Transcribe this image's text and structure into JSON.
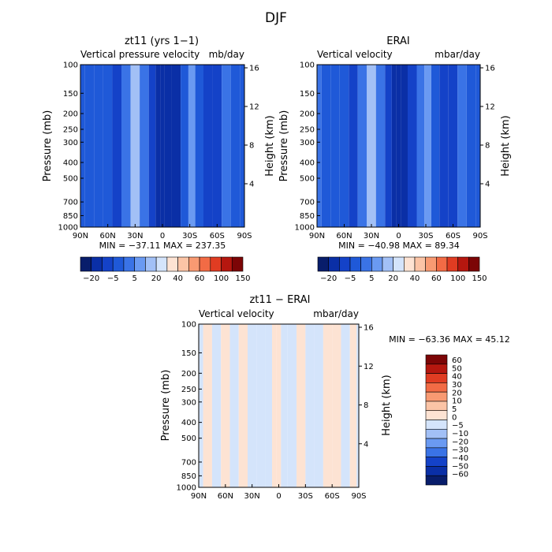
{
  "figure_title": "DJF",
  "colors": {
    "blue_scale": [
      "#081d6b",
      "#0a2fa6",
      "#1442c8",
      "#1f59d8",
      "#3a73e6",
      "#6a9af2",
      "#a2c0f6",
      "#d4e4fb"
    ],
    "red_scale": [
      "#fde3d3",
      "#fbc4a6",
      "#f89a72",
      "#f26b45",
      "#e03c22",
      "#b5170f",
      "#7c0506"
    ],
    "top_colorbar": [
      "#081d6b",
      "#0a2fa6",
      "#1442c8",
      "#1f59d8",
      "#3a73e6",
      "#6a9af2",
      "#a2c0f6",
      "#d4e4fb",
      "#fde3d3",
      "#fbc4a6",
      "#f89a72",
      "#f26b45",
      "#e03c22",
      "#b5170f",
      "#7c0506"
    ],
    "diff_colorbar": [
      "#081d6b",
      "#0a2fa6",
      "#1442c8",
      "#3a73e6",
      "#6a9af2",
      "#a2c0f6",
      "#d4e4fb",
      "#fde3d3",
      "#fbc4a6",
      "#f89a72",
      "#f26b45",
      "#e03c22",
      "#b5170f",
      "#7c0506"
    ]
  },
  "chart_data": [
    {
      "type": "heatmap",
      "title": "zt11 (yrs 1−1)",
      "subtitle_left": "Vertical pressure velocity",
      "subtitle_right": "mb/day",
      "xlabel": "",
      "ylabel": "Pressure (mb)",
      "ylabel_right": "Height (km)",
      "x_ticks": [
        "90N",
        "60N",
        "30N",
        "0",
        "30S",
        "60S",
        "90S"
      ],
      "y_ticks": [
        "100",
        "150",
        "200",
        "250",
        "300",
        "400",
        "500",
        "700",
        "850",
        "1000"
      ],
      "y_right_ticks": [
        "16",
        "12",
        "8",
        "4"
      ],
      "minmax_text": "MIN = −37.11   MAX = 237.35",
      "colorbar_labels": [
        "−20",
        "−5",
        "5",
        "20",
        "40",
        "60",
        "100",
        "150"
      ],
      "ylim": [
        1000,
        100
      ],
      "xlim": [
        90,
        -90
      ],
      "scale": "log-pressure",
      "columns": [
        {
          "lat": 90,
          "v": 0.48
        },
        {
          "lat": 80,
          "v": 0.46
        },
        {
          "lat": 70,
          "v": 0.38
        },
        {
          "lat": 60,
          "v": 0.42
        },
        {
          "lat": 50,
          "v": 0.35
        },
        {
          "lat": 40,
          "v": 0.55
        },
        {
          "lat": 30,
          "v": 0.88
        },
        {
          "lat": 20,
          "v": 0.62
        },
        {
          "lat": 10,
          "v": 0.28
        },
        {
          "lat": 5,
          "v": 0.15
        },
        {
          "lat": 0,
          "v": 0.12
        },
        {
          "lat": -5,
          "v": 0.1
        },
        {
          "lat": -15,
          "v": 0.2
        },
        {
          "lat": -25,
          "v": 0.48
        },
        {
          "lat": -32,
          "v": 0.72
        },
        {
          "lat": -40,
          "v": 0.45
        },
        {
          "lat": -50,
          "v": 0.3
        },
        {
          "lat": -60,
          "v": 0.35
        },
        {
          "lat": -70,
          "v": 0.58
        },
        {
          "lat": -80,
          "v": 0.44
        },
        {
          "lat": -90,
          "v": 0.38
        }
      ]
    },
    {
      "type": "heatmap",
      "title": "ERAI",
      "subtitle_left": "Vertical velocity",
      "subtitle_right": "mbar/day",
      "xlabel": "",
      "ylabel": "Pressure (mb)",
      "ylabel_right": "Height (km)",
      "x_ticks": [
        "90N",
        "60N",
        "30N",
        "0",
        "30S",
        "60S",
        "90S"
      ],
      "y_ticks": [
        "100",
        "150",
        "200",
        "250",
        "300",
        "400",
        "500",
        "700",
        "850",
        "1000"
      ],
      "y_right_ticks": [
        "16",
        "12",
        "8",
        "4"
      ],
      "minmax_text": "MIN = −40.98   MAX =   89.34",
      "colorbar_labels": [
        "−20",
        "−5",
        "5",
        "20",
        "40",
        "60",
        "100",
        "150"
      ],
      "ylim": [
        1000,
        100
      ],
      "xlim": [
        90,
        -90
      ],
      "scale": "log-pressure",
      "columns": [
        {
          "lat": 90,
          "v": 0.5
        },
        {
          "lat": 80,
          "v": 0.44
        },
        {
          "lat": 70,
          "v": 0.36
        },
        {
          "lat": 60,
          "v": 0.4
        },
        {
          "lat": 50,
          "v": 0.32
        },
        {
          "lat": 40,
          "v": 0.55
        },
        {
          "lat": 30,
          "v": 0.86
        },
        {
          "lat": 20,
          "v": 0.6
        },
        {
          "lat": 10,
          "v": 0.25
        },
        {
          "lat": 5,
          "v": 0.13
        },
        {
          "lat": 0,
          "v": 0.08
        },
        {
          "lat": -5,
          "v": 0.12
        },
        {
          "lat": -15,
          "v": 0.22
        },
        {
          "lat": -25,
          "v": 0.5
        },
        {
          "lat": -32,
          "v": 0.7
        },
        {
          "lat": -40,
          "v": 0.42
        },
        {
          "lat": -50,
          "v": 0.28
        },
        {
          "lat": -60,
          "v": 0.33
        },
        {
          "lat": -70,
          "v": 0.55
        },
        {
          "lat": -80,
          "v": 0.4
        },
        {
          "lat": -90,
          "v": 0.36
        }
      ]
    },
    {
      "type": "heatmap",
      "title": "zt11 − ERAI",
      "subtitle_left": "Vertical velocity",
      "subtitle_right": "mbar/day",
      "xlabel": "",
      "ylabel": "Pressure (mb)",
      "ylabel_right": "Height (km)",
      "x_ticks": [
        "90N",
        "60N",
        "30N",
        "0",
        "30S",
        "60S",
        "90S"
      ],
      "y_ticks": [
        "100",
        "150",
        "200",
        "250",
        "300",
        "400",
        "500",
        "700",
        "850",
        "1000"
      ],
      "y_right_ticks": [
        "16",
        "12",
        "8",
        "4"
      ],
      "minmax_text": "MIN = −63.36   MAX =   45.12",
      "colorbar_labels": [
        "60",
        "50",
        "40",
        "30",
        "20",
        "10",
        "5",
        "0",
        "−5",
        "−10",
        "−20",
        "−30",
        "−40",
        "−50",
        "−60"
      ],
      "ylim": [
        1000,
        100
      ],
      "xlim": [
        90,
        -90
      ],
      "scale": "log-pressure",
      "columns": [
        {
          "lat": 90,
          "sign": "neg"
        },
        {
          "lat": 80,
          "sign": "pos"
        },
        {
          "lat": 70,
          "sign": "neg"
        },
        {
          "lat": 60,
          "sign": "pos"
        },
        {
          "lat": 50,
          "sign": "neg"
        },
        {
          "lat": 40,
          "sign": "pos"
        },
        {
          "lat": 30,
          "sign": "neg"
        },
        {
          "lat": 20,
          "sign": "neg"
        },
        {
          "lat": 10,
          "sign": "neg"
        },
        {
          "lat": 5,
          "sign": "pos"
        },
        {
          "lat": 0,
          "sign": "pos"
        },
        {
          "lat": -5,
          "sign": "neg"
        },
        {
          "lat": -15,
          "sign": "neg"
        },
        {
          "lat": -25,
          "sign": "pos"
        },
        {
          "lat": -35,
          "sign": "neg"
        },
        {
          "lat": -45,
          "sign": "neg"
        },
        {
          "lat": -55,
          "sign": "pos"
        },
        {
          "lat": -65,
          "sign": "pos"
        },
        {
          "lat": -75,
          "sign": "neg"
        },
        {
          "lat": -85,
          "sign": "pos"
        },
        {
          "lat": -90,
          "sign": "neg"
        }
      ]
    }
  ]
}
